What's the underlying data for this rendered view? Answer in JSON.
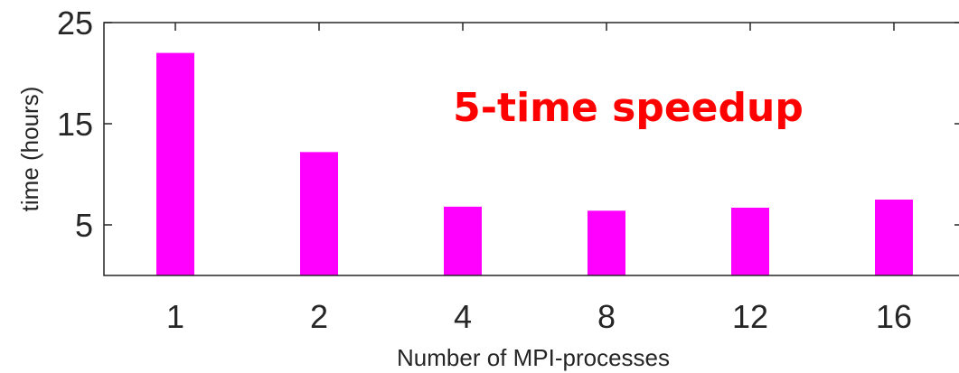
{
  "chart_data": {
    "type": "bar",
    "categories": [
      "1",
      "2",
      "4",
      "8",
      "12",
      "16"
    ],
    "values": [
      22.0,
      12.2,
      6.8,
      6.4,
      6.7,
      7.5
    ],
    "xlabel": "Number of MPI-processes",
    "ylabel": "time (hours)",
    "ylim": [
      0,
      25
    ],
    "yticks": [
      5,
      15,
      25
    ],
    "grid": false,
    "bar_color": "#ff00ff",
    "annotation": {
      "text": "5-time speedup",
      "color": "#ff0000"
    }
  }
}
